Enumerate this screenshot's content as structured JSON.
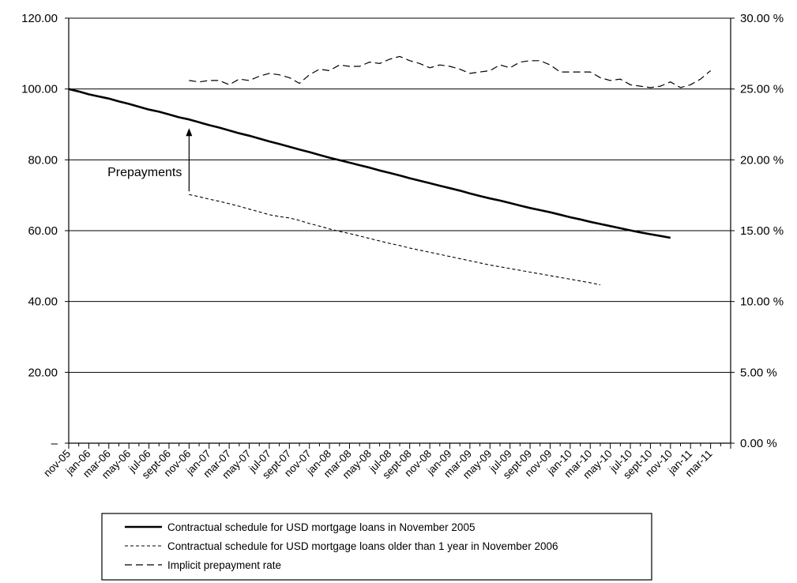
{
  "chart_data": {
    "type": "line",
    "title": "",
    "grid": true,
    "legend_position": "bottom",
    "x_labels": [
      "nov-05",
      "jan-06",
      "mar-06",
      "may-06",
      "jul-06",
      "sept-06",
      "nov-06",
      "jan-07",
      "mar-07",
      "may-07",
      "jul-07",
      "sept-07",
      "nov-07",
      "jan-08",
      "mar-08",
      "may-08",
      "jul-08",
      "sept-08",
      "nov-08",
      "jan-09",
      "mar-09",
      "may-09",
      "jul-09",
      "sept-09",
      "nov-09",
      "jan-10",
      "mar-10",
      "may-10",
      "jul-10",
      "sept-10",
      "nov-10",
      "jan-11",
      "mar-11"
    ],
    "n_months": 66,
    "y_left": {
      "min": 0,
      "max": 120,
      "ticks": [
        0,
        20,
        40,
        60,
        80,
        100,
        120
      ],
      "tick_labels": [
        "–",
        "20.00",
        "40.00",
        "60.00",
        "80.00",
        "100.00",
        "120.00"
      ]
    },
    "y_right": {
      "min": 0,
      "max": 30,
      "ticks": [
        0,
        5,
        10,
        15,
        20,
        25,
        30
      ],
      "tick_labels": [
        "0.00 %",
        "5.00 %",
        "10.00 %",
        "15.00 %",
        "20.00 %",
        "25.00 %",
        "30.00 %"
      ]
    },
    "series": [
      {
        "name": "Contractual schedule for USD mortgage loans in November 2005",
        "axis": "left",
        "style": "solid",
        "start_month": 0,
        "values": [
          100.0,
          99.3,
          98.5,
          97.9,
          97.3,
          96.5,
          95.8,
          95.0,
          94.2,
          93.6,
          92.8,
          92.0,
          91.4,
          90.6,
          89.8,
          89.1,
          88.3,
          87.5,
          86.8,
          86.0,
          85.2,
          84.5,
          83.7,
          82.9,
          82.2,
          81.4,
          80.6,
          79.9,
          79.2,
          78.5,
          77.8,
          77.0,
          76.3,
          75.6,
          74.8,
          74.1,
          73.4,
          72.7,
          72.0,
          71.3,
          70.5,
          69.8,
          69.1,
          68.5,
          67.8,
          67.1,
          66.4,
          65.8,
          65.2,
          64.5,
          63.8,
          63.2,
          62.5,
          61.9,
          61.3,
          60.7,
          60.1,
          59.5,
          59.0,
          58.5,
          58.0
        ]
      },
      {
        "name": "Contractual schedule for USD mortgage loans older than 1 year in November 2006",
        "axis": "left",
        "style": "dashed",
        "start_month": 12,
        "values": [
          70.2,
          69.6,
          68.9,
          68.3,
          67.6,
          66.9,
          66.1,
          65.3,
          64.5,
          64.0,
          63.6,
          62.9,
          62.0,
          61.3,
          60.5,
          59.8,
          59.2,
          58.5,
          57.8,
          57.1,
          56.4,
          55.8,
          55.1,
          54.5,
          53.9,
          53.3,
          52.7,
          52.1,
          51.5,
          50.9,
          50.3,
          49.8,
          49.3,
          48.8,
          48.3,
          47.8,
          47.3,
          46.8,
          46.3,
          45.8,
          45.3,
          44.7
        ]
      },
      {
        "name": "Implicit prepayment rate",
        "axis": "right",
        "style": "long-dashed",
        "start_month": 12,
        "values": [
          25.6,
          25.5,
          25.6,
          25.6,
          25.3,
          25.7,
          25.6,
          25.9,
          26.1,
          26.0,
          25.8,
          25.4,
          26.0,
          26.4,
          26.3,
          26.7,
          26.6,
          26.6,
          26.9,
          26.8,
          27.1,
          27.3,
          27.0,
          26.8,
          26.5,
          26.7,
          26.6,
          26.4,
          26.1,
          26.2,
          26.3,
          26.7,
          26.5,
          26.9,
          27.0,
          27.0,
          26.7,
          26.2,
          26.2,
          26.2,
          26.2,
          25.8,
          25.6,
          25.7,
          25.3,
          25.2,
          25.1,
          25.2,
          25.5,
          25.1,
          25.3,
          25.7,
          26.3
        ]
      }
    ],
    "annotations": [
      {
        "text": "Prepayments",
        "arrow_at_month": 12,
        "arrow_from_value": 70,
        "arrow_to_value": 89.6
      }
    ]
  }
}
